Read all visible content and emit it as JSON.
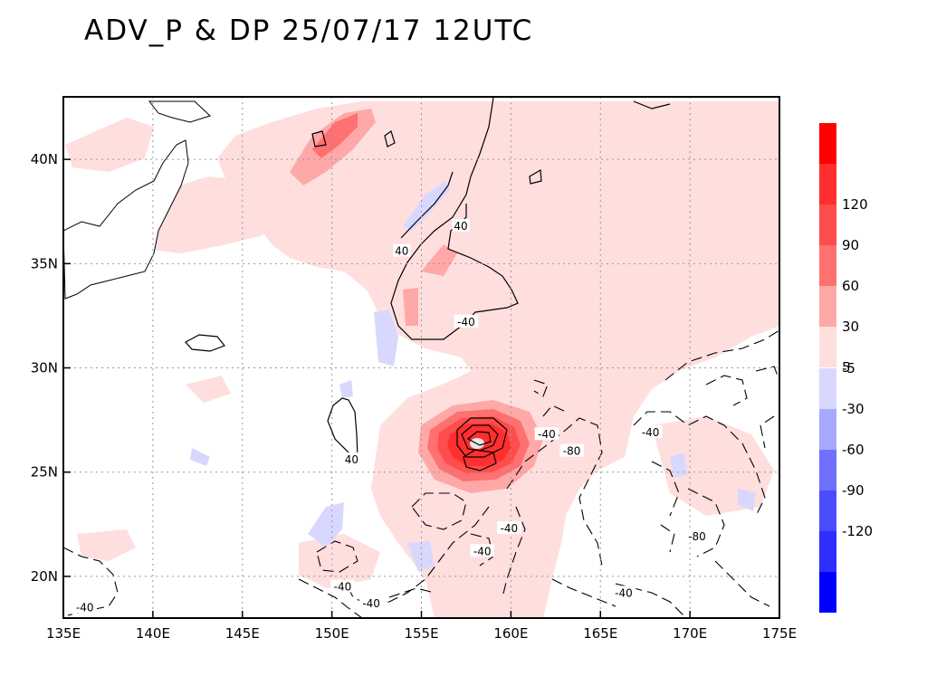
{
  "title": "ADV_P & DP 25/07/17 12UTC",
  "map": {
    "lon_range": [
      135,
      175
    ],
    "lat_range": [
      18,
      43
    ],
    "x_ticks": [
      "135E",
      "140E",
      "145E",
      "150E",
      "155E",
      "160E",
      "165E",
      "170E",
      "175E"
    ],
    "y_ticks": [
      "20N",
      "25N",
      "30N",
      "35N",
      "40N"
    ],
    "contour_labels": [
      {
        "text": "40",
        "lon": 157.2,
        "lat": 36.8
      },
      {
        "text": "40",
        "lon": 153.9,
        "lat": 35.6
      },
      {
        "text": "-40",
        "lon": 157.5,
        "lat": 32.2
      },
      {
        "text": "40",
        "lon": 151.1,
        "lat": 25.6
      },
      {
        "text": "-40",
        "lon": 162.0,
        "lat": 26.8
      },
      {
        "text": "-80",
        "lon": 163.4,
        "lat": 26.0
      },
      {
        "text": "-40",
        "lon": 167.8,
        "lat": 26.9
      },
      {
        "text": "-40",
        "lon": 159.9,
        "lat": 22.3
      },
      {
        "text": "-40",
        "lon": 158.4,
        "lat": 21.2
      },
      {
        "text": "-80",
        "lon": 170.4,
        "lat": 21.9
      },
      {
        "text": "-40",
        "lon": 150.6,
        "lat": 19.5
      },
      {
        "text": "-40",
        "lon": 152.2,
        "lat": 18.7
      },
      {
        "text": "-40",
        "lon": 166.3,
        "lat": 19.2
      },
      {
        "text": "-40",
        "lon": 136.2,
        "lat": 18.5
      }
    ]
  },
  "legend": {
    "positive": [
      {
        "color": "#ff0000",
        "label": ""
      },
      {
        "color": "#ff2f2f",
        "label": "120"
      },
      {
        "color": "#ff4c4c",
        "label": "90"
      },
      {
        "color": "#ff7070",
        "label": "60"
      },
      {
        "color": "#ffa8a8",
        "label": "30"
      },
      {
        "color": "#ffdede",
        "label": "5"
      }
    ],
    "negative": [
      {
        "color": "#d8d8ff",
        "label": "-5"
      },
      {
        "color": "#a8a8ff",
        "label": "-30"
      },
      {
        "color": "#7070ff",
        "label": "-60"
      },
      {
        "color": "#4c4cff",
        "label": "-90"
      },
      {
        "color": "#2f2fff",
        "label": "-120"
      },
      {
        "color": "#0000ff",
        "label": ""
      }
    ]
  }
}
